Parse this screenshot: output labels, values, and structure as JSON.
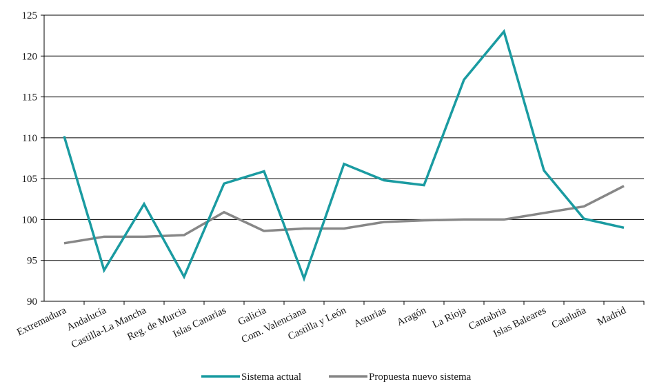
{
  "chart_data": {
    "type": "line",
    "title": "",
    "xlabel": "",
    "ylabel": "",
    "ylim": [
      90,
      125
    ],
    "yticks": [
      90,
      95,
      100,
      105,
      110,
      115,
      120,
      125
    ],
    "grid": "horizontal",
    "legend_position": "bottom",
    "categories": [
      "Extremadura",
      "Andalucía",
      "Castilla-La Mancha",
      "Reg. de Murcia",
      "Islas Canarias",
      "Galicia",
      "Com. Valenciana",
      "Castilla y León",
      "Asturias",
      "Aragón",
      "La Rioja",
      "Cantabria",
      "Islas Baleares",
      "Cataluña",
      "Madrid"
    ],
    "series": [
      {
        "name": "Sistema actual",
        "color": "#1a9ba1",
        "values": [
          110.2,
          93.8,
          101.9,
          93.0,
          104.4,
          105.9,
          92.8,
          106.8,
          104.8,
          104.2,
          117.1,
          123.0,
          106.0,
          100.1,
          99.0
        ]
      },
      {
        "name": "Propuesta nuevo sistema",
        "color": "#878787",
        "values": [
          97.1,
          97.9,
          97.9,
          98.1,
          100.9,
          98.6,
          98.9,
          98.9,
          99.7,
          99.9,
          100.0,
          100.0,
          100.8,
          101.6,
          104.1
        ]
      }
    ]
  }
}
